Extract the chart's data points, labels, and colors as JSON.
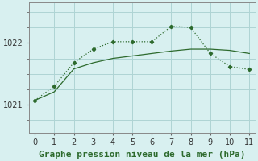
{
  "line_upper_x": [
    0,
    1,
    2,
    3,
    4,
    5,
    6,
    7,
    8,
    9,
    10,
    11
  ],
  "line_upper_y": [
    1021.07,
    1021.3,
    1021.68,
    1021.9,
    1022.02,
    1022.02,
    1022.02,
    1022.27,
    1022.25,
    1021.83,
    1021.62,
    1021.57
  ],
  "line_lower_x": [
    0,
    1,
    2,
    3,
    4,
    5,
    6,
    7,
    8,
    9,
    10,
    11
  ],
  "line_lower_y": [
    1021.07,
    1021.21,
    1021.58,
    1021.68,
    1021.75,
    1021.79,
    1021.83,
    1021.87,
    1021.9,
    1021.9,
    1021.88,
    1021.83
  ],
  "color": "#2d6a2d",
  "background_color": "#d8f0f0",
  "grid_color": "#aed4d4",
  "xlabel": "Graphe pression niveau de la mer (hPa)",
  "ytick_positions": [
    1021,
    1022
  ],
  "ytick_labels": [
    "1021",
    "1022"
  ],
  "xlim": [
    -0.3,
    11.3
  ],
  "ylim": [
    1020.55,
    1022.65
  ],
  "xlabel_fontsize": 8,
  "tick_fontsize": 7
}
